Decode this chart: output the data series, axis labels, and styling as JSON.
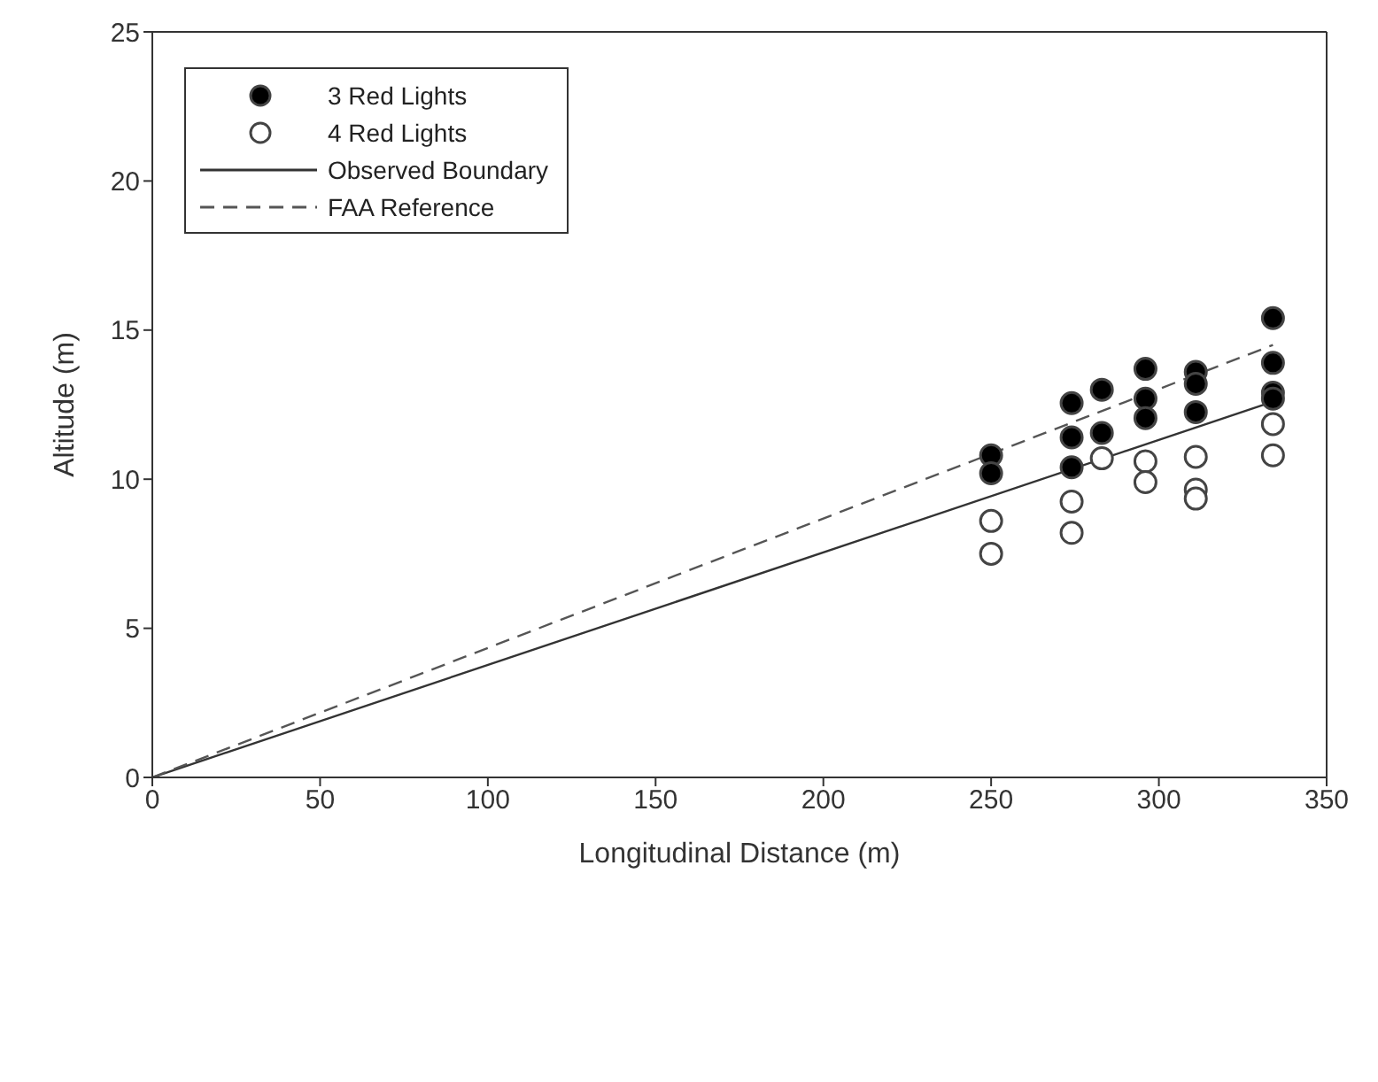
{
  "chart_data": {
    "type": "scatter",
    "xlabel": "Longitudinal Distance (m)",
    "ylabel": "Altitude (m)",
    "xlim": [
      0,
      350
    ],
    "xticks": [
      0,
      50,
      100,
      150,
      200,
      250,
      300,
      350
    ],
    "ylim": [
      0,
      25
    ],
    "yticks": [
      0,
      5,
      10,
      15,
      20,
      25
    ],
    "grid": false,
    "legend": "top left",
    "marker": "circle",
    "series": [
      {
        "name": "3 Red Lights",
        "color": "#000000",
        "x": [
          250,
          250,
          274,
          274,
          274,
          283,
          283,
          296,
          296,
          296,
          311,
          311,
          311,
          334,
          334,
          334,
          334
        ],
        "values": [
          10.8,
          10.2,
          12.55,
          11.4,
          10.4,
          13.0,
          11.55,
          13.7,
          12.7,
          12.05,
          13.6,
          13.2,
          12.25,
          15.4,
          13.9,
          12.9,
          12.7
        ]
      },
      {
        "name": "4 Red Lights",
        "color": "#ffffff",
        "x": [
          250,
          250,
          274,
          274,
          283,
          296,
          296,
          311,
          311,
          311,
          334,
          334
        ],
        "values": [
          8.6,
          7.5,
          9.25,
          8.2,
          10.7,
          10.6,
          9.9,
          10.75,
          9.65,
          9.35,
          11.85,
          10.8
        ]
      },
      {
        "name": "Observed Boundary",
        "type": "line",
        "color": "#333333",
        "line_style": "solid",
        "marker": "none",
        "x": [
          0,
          334
        ],
        "values": [
          0,
          12.6
        ]
      },
      {
        "name": "FAA Reference",
        "type": "line",
        "color": "#555555",
        "line_style": "dashed",
        "marker": "none",
        "x": [
          0,
          334
        ],
        "values": [
          0,
          14.5
        ]
      }
    ]
  }
}
